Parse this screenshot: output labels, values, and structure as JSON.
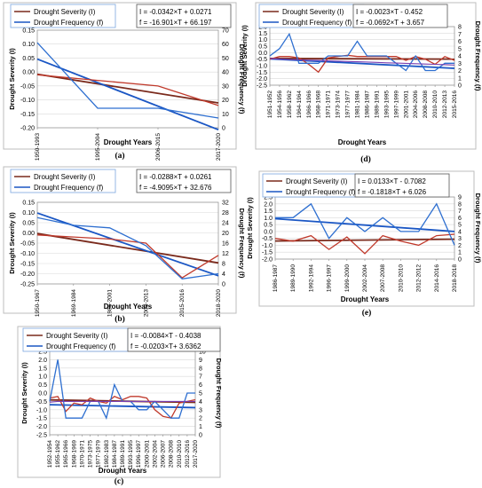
{
  "chart_data": [
    {
      "type": "line",
      "panel_label": "(a)",
      "legend": [
        "Drought  Severity (I)",
        "Drought  Frequency (f)"
      ],
      "equations": [
        "I = -0.0342×T + 0.0271",
        "f = -16.901×T + 66.197"
      ],
      "xlabel": "Drought Years",
      "ylabel": "Drought Severity (I)",
      "y2label": "Drought Frequency (f)",
      "categories": [
        "1950-1993",
        "1995-2004",
        "2006-2015",
        "2017-2020"
      ],
      "ylim": [
        -0.2,
        0.15
      ],
      "yticks": [
        "0.15",
        "0.10",
        "0.05",
        "0.00",
        "-0.05",
        "-0.10",
        "-0.15",
        "-0.20"
      ],
      "y2lim": [
        0,
        70
      ],
      "y2ticks": [
        "70",
        "60",
        "50",
        "40",
        "30",
        "20",
        "10",
        "0"
      ],
      "series": [
        {
          "name": "Drought  Severity (I)",
          "axis": "left",
          "values": [
            -0.01,
            -0.03,
            -0.05,
            -0.12
          ]
        },
        {
          "name": "Drought  Frequency (f)",
          "axis": "right",
          "values": [
            61,
            14,
            14,
            7
          ]
        }
      ],
      "trends": {
        "left": [
          -0.008,
          -0.111
        ],
        "right": [
          49.3,
          -1.4
        ]
      },
      "colors": {
        "severity": "#c0392b",
        "frequency": "#2e6fd0",
        "severity_trend": "#7a2a1c",
        "frequency_trend": "#1a56c4"
      }
    },
    {
      "type": "line",
      "panel_label": "(b)",
      "legend": [
        "Drought  Severity (I)",
        "Drought  Frequency (f)"
      ],
      "equations": [
        "I = -0.0288×T + 0.0261",
        "f = -4.9095×T + 32.676"
      ],
      "xlabel": "Drought Years",
      "ylabel": "Drought Severity (I)",
      "y2label": "Drought Frequency (f)",
      "categories": [
        "1950-1967",
        "1969-1984",
        "1986-2001",
        "2003-2013",
        "2015-2016",
        "2018-2020"
      ],
      "ylim": [
        -0.25,
        0.15
      ],
      "yticks": [
        "0.15",
        "0.10",
        "0.05",
        "0.00",
        "-0.05",
        "-0.10",
        "-0.15",
        "-0.20",
        "-0.25"
      ],
      "y2lim": [
        0,
        32
      ],
      "y2ticks": [
        "32",
        "28",
        "24",
        "20",
        "16",
        "12",
        "8",
        "4",
        "0"
      ],
      "series": [
        {
          "name": "Drought  Severity (I)",
          "axis": "left",
          "values": [
            -0.01,
            -0.02,
            -0.03,
            -0.05,
            -0.22,
            -0.11
          ]
        },
        {
          "name": "Drought  Frequency (f)",
          "axis": "right",
          "values": [
            26,
            23,
            22,
            15,
            2,
            4
          ]
        }
      ],
      "trends": {
        "left": [
          -0.003,
          -0.147
        ],
        "right": [
          27.8,
          3.2
        ]
      },
      "colors": {
        "severity": "#c0392b",
        "frequency": "#2e6fd0",
        "severity_trend": "#7a2a1c",
        "frequency_trend": "#1a56c4"
      }
    },
    {
      "type": "line",
      "panel_label": "(c)",
      "legend": [
        "Drought  Severity (I)",
        "Drought  Frequency (f)"
      ],
      "equations": [
        "I = -0.0084×T - 0.4038",
        "f = -0.0203×T+ 3.6362"
      ],
      "xlabel": "Drought Years",
      "ylabel": "Drought Severity (I)",
      "y2label": "Drought Frequency (f)",
      "categories": [
        "1952-1954",
        "1955-1962",
        "1965-1966",
        "1968-1969",
        "1970-1971",
        "1973-1975",
        "1977-1979",
        "1982-1983",
        "1984-1987",
        "1989-1991",
        "1993-1995",
        "1996-1997",
        "2000-2001",
        "2002-2004",
        "2006-2007",
        "2008-2008",
        "2010-2010",
        "2012-2016",
        "2017-2020"
      ],
      "ylim": [
        -2.5,
        2.5
      ],
      "yticks": [
        "2.5",
        "2.0",
        "1.5",
        "1.0",
        "0.5",
        "0.0",
        "-0.5",
        "-1.0",
        "-1.5",
        "-2.0",
        "-2.5"
      ],
      "y2lim": [
        0,
        10
      ],
      "y2ticks": [
        "10",
        "9",
        "8",
        "7",
        "6",
        "5",
        "4",
        "3",
        "2",
        "1",
        "0"
      ],
      "series": [
        {
          "name": "Drought  Severity (I)",
          "axis": "left",
          "values": [
            -0.3,
            -0.2,
            -1.1,
            -0.6,
            -0.7,
            -0.3,
            -0.5,
            -0.6,
            -0.2,
            -0.4,
            -0.2,
            -0.2,
            -0.3,
            -1.0,
            -1.4,
            -1.5,
            -0.6,
            -0.5,
            -0.4
          ]
        },
        {
          "name": "Drought  Frequency (f)",
          "axis": "right",
          "values": [
            4,
            9,
            2,
            2,
            2,
            4,
            4,
            2,
            6,
            4,
            4,
            3,
            3,
            4,
            3,
            2,
            2,
            5,
            5
          ]
        },
        {
          "name": "",
          "axis": "left",
          "values": [
            -0.55,
            -0.5,
            -0.5,
            -0.5,
            -0.5,
            -0.5,
            -0.5,
            -0.5,
            -0.5,
            -0.5,
            -0.5,
            -0.5,
            -0.5,
            -0.5,
            -0.5,
            -0.5,
            -0.5,
            -0.5,
            -0.5
          ]
        }
      ],
      "trends": {
        "left": [
          -0.41,
          -0.56
        ],
        "right": [
          3.6,
          3.25
        ]
      },
      "colors": {
        "severity": "#c0392b",
        "frequency": "#2e6fd0",
        "severity_trend": "#7a2a1c",
        "frequency_trend": "#1a56c4",
        "extra": "#7b3fb0"
      }
    },
    {
      "type": "line",
      "panel_label": "(d)",
      "legend": [
        "Drought  Severity (I)",
        "Drought  Frequency (f)"
      ],
      "equations": [
        "I = -0.0023×T - 0.452",
        "f = -0.0692×T + 3.657"
      ],
      "xlabel": "Drought Years",
      "ylabel": "Drought Severity (I)",
      "y2label": "Drought Frequency (f)",
      "categories": [
        "1951-1952",
        "1954-1956",
        "1958-1962",
        "1964-1964",
        "1966-1966",
        "1968-1968",
        "1971-1971",
        "1973-1974",
        "1977-1977",
        "1981-1984",
        "1986-1987",
        "1989-1991",
        "1993-1995",
        "1997-1999",
        "2001-2001",
        "2004-2006",
        "2008-2008",
        "2010-2010",
        "2012-2013",
        "2015-2016"
      ],
      "ylim": [
        -2.5,
        2.0
      ],
      "yticks": [
        "2.0",
        "1.5",
        "1.0",
        "0.5",
        "0.0",
        "-0.5",
        "-1.0",
        "-1.5",
        "-2.0",
        "-2.5"
      ],
      "y2lim": [
        0,
        8
      ],
      "y2ticks": [
        "8",
        "7",
        "6",
        "5",
        "4",
        "3",
        "2",
        "1",
        "0"
      ],
      "series": [
        {
          "name": "Drought  Severity (I)",
          "axis": "left",
          "values": [
            -0.5,
            -0.3,
            -0.3,
            -0.4,
            -0.9,
            -1.5,
            -0.4,
            -0.3,
            -0.2,
            -0.3,
            -0.3,
            -0.3,
            -0.3,
            -0.3,
            -0.6,
            -0.3,
            -0.5,
            -0.9,
            -0.3,
            -0.6
          ]
        },
        {
          "name": "Drought  Frequency (f)",
          "axis": "right",
          "values": [
            4,
            5,
            7,
            3,
            3,
            3,
            4,
            4,
            4,
            6,
            4,
            4,
            4,
            3,
            2,
            4,
            2,
            2,
            3,
            3
          ]
        },
        {
          "name": "",
          "axis": "left",
          "values": [
            -0.45,
            -0.5,
            -0.52,
            -0.55,
            -0.58,
            -0.6,
            -0.63,
            -0.65,
            -0.68,
            -0.7,
            -0.72,
            -0.75,
            -0.78,
            -0.8,
            -0.82,
            -0.85,
            -0.88,
            -0.9,
            -0.92,
            -0.95
          ]
        }
      ],
      "trends": {
        "left": [
          -0.45,
          -0.5
        ],
        "right": [
          3.6,
          2.3
        ]
      },
      "colors": {
        "severity": "#c0392b",
        "frequency": "#2e6fd0",
        "severity_trend": "#7a2a1c",
        "frequency_trend": "#1a56c4",
        "extra": "#7b3fb0"
      }
    },
    {
      "type": "line",
      "panel_label": "(e)",
      "legend": [
        "Drought  Severity (I)",
        "Drought  Frequency (f)"
      ],
      "equations": [
        "I = 0.0133×T - 0.7082",
        "f = -0.1818×T + 6.026"
      ],
      "xlabel": "Drought Years",
      "ylabel": "Drought Severity (I)",
      "y2label": "Drought Frequency (f)",
      "categories": [
        "1986-1987",
        "1989-1990",
        "1992-1994",
        "1996-1997",
        "1999-2000",
        "2002-2004",
        "2007-2008",
        "2010-2010",
        "2012-2012",
        "2014-2016",
        "2018-2018"
      ],
      "ylim": [
        -2.0,
        2.5
      ],
      "yticks": [
        "2.5",
        "2.0",
        "1.5",
        "1.0",
        "0.5",
        "0.0",
        "-0.5",
        "-1.0",
        "-1.5",
        "-2.0"
      ],
      "y2lim": [
        0,
        9
      ],
      "y2ticks": [
        "9",
        "8",
        "7",
        "6",
        "5",
        "4",
        "3",
        "2",
        "1",
        "0"
      ],
      "series": [
        {
          "name": "Drought  Severity (I)",
          "axis": "left",
          "values": [
            -0.5,
            -0.7,
            -0.3,
            -1.3,
            -0.4,
            -1.6,
            -0.3,
            -0.7,
            -1.0,
            -0.3,
            -0.2
          ]
        },
        {
          "name": "Drought  Frequency (f)",
          "axis": "right",
          "values": [
            6,
            6,
            8,
            3,
            6,
            4,
            6,
            4,
            4,
            8,
            2
          ]
        }
      ],
      "trends": {
        "left": [
          -0.69,
          -0.56
        ],
        "right": [
          5.85,
          4.0
        ]
      },
      "colors": {
        "severity": "#c0392b",
        "frequency": "#2e6fd0",
        "severity_trend": "#7a2a1c",
        "frequency_trend": "#1a56c4"
      }
    }
  ]
}
